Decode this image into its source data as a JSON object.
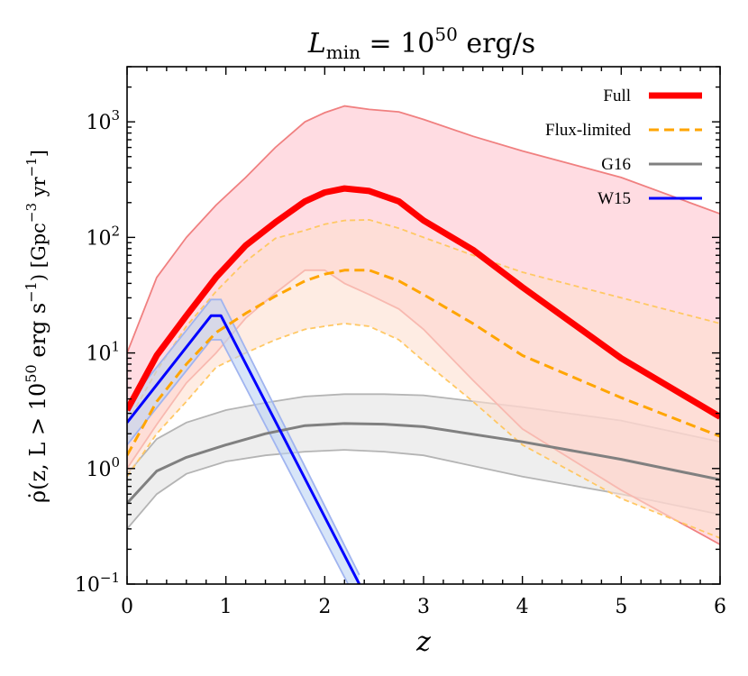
{
  "chart_data": {
    "type": "line",
    "title": "L_min = 10^50 erg/s",
    "title_parts": {
      "L": "L",
      "sub": "min",
      "eq": " = 10",
      "exp": "50",
      "unit": " erg/s"
    },
    "xlabel": "z",
    "ylabel": {
      "rho": "ρ̇(z, L > 10",
      "exp": "50",
      "unit": " erg s",
      "unit_exp": "−1",
      "bracket_open": ") [Gpc",
      "gpc_exp": "−3",
      "yr": " yr",
      "yr_exp": "−1",
      "bracket_close": "]"
    },
    "x_range": [
      0,
      6
    ],
    "y_range": [
      0.1,
      3000
    ],
    "y_scale": "log",
    "x_ticks": [
      0,
      1,
      2,
      3,
      4,
      5,
      6
    ],
    "x_tick_labels": [
      "0",
      "1",
      "2",
      "3",
      "4",
      "5",
      "6"
    ],
    "y_ticks": [
      0.1,
      1,
      10,
      100,
      1000
    ],
    "y_tick_labels": [
      {
        "base": "10",
        "exp": "−1"
      },
      {
        "base": "10",
        "exp": "0"
      },
      {
        "base": "10",
        "exp": "1"
      },
      {
        "base": "10",
        "exp": "2"
      },
      {
        "base": "10",
        "exp": "3"
      }
    ],
    "legend_position": "top-right",
    "series": [
      {
        "name": "Full",
        "color": "#ff0000",
        "band_fill": "#ffc0cb",
        "band_edge": "#f08080",
        "style": "solid",
        "width": "thick",
        "x": [
          0,
          0.3,
          0.6,
          0.9,
          1.2,
          1.5,
          1.8,
          2.0,
          2.2,
          2.45,
          2.75,
          3.0,
          3.5,
          4.0,
          5.0,
          6.0
        ],
        "y": [
          3.2,
          9.5,
          21,
          45,
          85,
          135,
          205,
          245,
          265,
          252,
          205,
          140,
          78,
          37,
          9,
          2.8
        ],
        "upper": [
          10,
          45,
          100,
          190,
          330,
          600,
          1000,
          1200,
          1370,
          1280,
          1220,
          1050,
          750,
          560,
          330,
          160
        ],
        "lower": [
          1.0,
          2.4,
          5.5,
          10,
          20,
          33,
          52,
          52,
          40,
          32,
          24,
          16,
          5.8,
          2.2,
          0.65,
          0.22
        ]
      },
      {
        "name": "Flux-limited",
        "color": "#ffa500",
        "band_fill": "#fde0d0",
        "band_edge": "#ffc864",
        "style": "dashed",
        "x": [
          0,
          0.3,
          0.6,
          0.9,
          1.2,
          1.5,
          1.8,
          2.0,
          2.2,
          2.45,
          2.75,
          3.0,
          3.5,
          4.0,
          5.0,
          6.0
        ],
        "y": [
          1.3,
          3.8,
          8,
          15,
          22,
          31,
          42,
          48,
          52,
          52,
          42,
          32,
          18,
          9.5,
          4.1,
          1.9
        ],
        "upper": [
          2.5,
          7,
          17,
          34,
          62,
          98,
          115,
          130,
          140,
          142,
          120,
          100,
          70,
          50,
          30,
          18
        ],
        "lower": [
          0.85,
          2.0,
          3.8,
          7.5,
          10,
          13,
          16,
          17,
          18,
          17,
          13,
          8.5,
          3.8,
          1.6,
          0.55,
          0.25
        ]
      },
      {
        "name": "G16",
        "color": "#808080",
        "band_fill": "#e2e2e2",
        "band_edge": "#b4b4b4",
        "style": "solid",
        "x": [
          0,
          0.3,
          0.6,
          1.0,
          1.4,
          1.8,
          2.2,
          2.6,
          3.0,
          4.0,
          5.0,
          6.0
        ],
        "y": [
          0.5,
          0.95,
          1.25,
          1.6,
          2.0,
          2.35,
          2.45,
          2.42,
          2.3,
          1.7,
          1.2,
          0.8
        ],
        "upper": [
          0.9,
          1.8,
          2.5,
          3.2,
          3.7,
          4.2,
          4.4,
          4.4,
          4.3,
          3.4,
          2.6,
          1.7
        ],
        "lower": [
          0.3,
          0.6,
          0.9,
          1.15,
          1.3,
          1.4,
          1.45,
          1.4,
          1.3,
          0.85,
          0.6,
          0.4
        ]
      },
      {
        "name": "W15",
        "color": "#0000ff",
        "band_fill": "#bcd4f4",
        "band_edge": "#a0b4f0",
        "style": "solid",
        "x": [
          0,
          0.85,
          0.95,
          2.35
        ],
        "y": [
          2.5,
          21,
          21,
          0.1
        ],
        "upper": [
          3.6,
          29,
          29,
          0.12
        ],
        "lower": [
          1.6,
          13,
          13,
          0.065
        ]
      }
    ]
  }
}
